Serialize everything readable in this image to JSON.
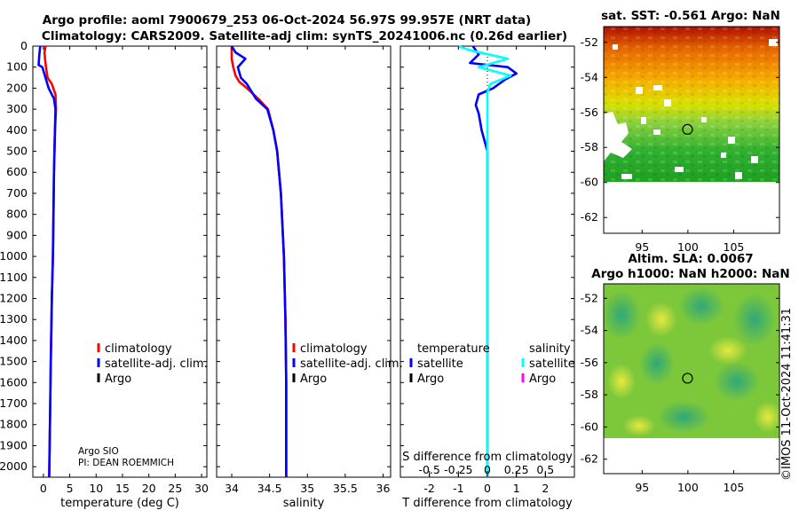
{
  "title": {
    "line1": "Argo profile: aoml 7900679_253 06-Oct-2024 56.97S 99.957E (NRT data)",
    "line2": "Climatology: CARS2009. Satellite-adj clim: synTS_20241006.nc (0.26d earlier)"
  },
  "colors": {
    "climatology": "#ff0000",
    "satellite": "#0000ff",
    "argo": "#000000",
    "sat_t": "#00ffff",
    "argo_s": "#ff00ff"
  },
  "pressure_ticks": [
    "0",
    "100",
    "200",
    "300",
    "400",
    "500",
    "600",
    "700",
    "800",
    "900",
    "1000",
    "1100",
    "1200",
    "1300",
    "1400",
    "1500",
    "1600",
    "1700",
    "1800",
    "1900",
    "2000"
  ],
  "legend_profiles": {
    "climatology": "climatology",
    "satellite": "satellite-adj. clim.",
    "argo": "Argo"
  },
  "legend_diff": {
    "temperature": "temperature",
    "salinity": "salinity",
    "satellite": "satellite",
    "argo": "Argo"
  },
  "credit": {
    "line1": "Argo SIO",
    "line2": "PI: DEAN ROEMMICH"
  },
  "diff_note": "S difference from climatology",
  "maps": {
    "sst_title": "sat. SST: -0.561 Argo: NaN",
    "sla_title1": "Altim. SLA: 0.0067",
    "sla_title2": "Argo h1000: NaN h2000: NaN",
    "lat_ticks": [
      "-52",
      "-54",
      "-56",
      "-58",
      "-60",
      "-62"
    ],
    "lon_ticks": [
      "95",
      "100",
      "105"
    ],
    "float_position": {
      "lon": 99.957,
      "lat": -56.97
    }
  },
  "stamp": "©IMOS 11-Oct-2024 11:41:31",
  "chart_data": [
    {
      "type": "line",
      "id": "temperature",
      "xlabel": "temperature (deg C)",
      "ylabel": "",
      "xlim": [
        -2,
        31
      ],
      "ylim": [
        0,
        2050
      ],
      "x_ticks": [
        0,
        5,
        10,
        15,
        20,
        25,
        30
      ],
      "x_tick_labels": [
        "0",
        "5",
        "10",
        "15",
        "20",
        "25",
        "30"
      ],
      "series": [
        {
          "name": "climatology",
          "color": "#ff0000",
          "points": [
            [
              0.4,
              0
            ],
            [
              0.2,
              30
            ],
            [
              0.3,
              60
            ],
            [
              0.5,
              100
            ],
            [
              0.8,
              150
            ],
            [
              1.6,
              180
            ],
            [
              2.3,
              230
            ],
            [
              2.4,
              300
            ],
            [
              2.2,
              400
            ],
            [
              2.0,
              600
            ],
            [
              1.9,
              800
            ],
            [
              1.8,
              1000
            ],
            [
              1.6,
              1200
            ],
            [
              1.4,
              1500
            ],
            [
              1.3,
              1700
            ],
            [
              1.1,
              2050
            ]
          ]
        },
        {
          "name": "satellite-adj. clim.",
          "color": "#0000ff",
          "points": [
            [
              -0.6,
              0
            ],
            [
              -0.8,
              50
            ],
            [
              -0.9,
              90
            ],
            [
              -0.2,
              100
            ],
            [
              1.0,
              200
            ],
            [
              2.0,
              250
            ],
            [
              2.3,
              300
            ],
            [
              2.2,
              400
            ],
            [
              2.0,
              600
            ],
            [
              1.9,
              800
            ],
            [
              1.8,
              1000
            ],
            [
              1.6,
              1200
            ],
            [
              1.4,
              1500
            ],
            [
              1.3,
              1700
            ],
            [
              1.1,
              2050
            ]
          ]
        }
      ]
    },
    {
      "type": "line",
      "id": "salinity",
      "xlabel": "salinity",
      "ylabel": "",
      "xlim": [
        33.8,
        36.1
      ],
      "ylim": [
        0,
        2050
      ],
      "x_ticks": [
        34,
        34.5,
        35,
        35.5,
        36
      ],
      "x_tick_labels": [
        "34",
        "34.5",
        "35",
        "35.5",
        "36"
      ],
      "series": [
        {
          "name": "climatology",
          "color": "#ff0000",
          "points": [
            [
              34.0,
              0
            ],
            [
              34.0,
              60
            ],
            [
              34.02,
              100
            ],
            [
              34.05,
              140
            ],
            [
              34.1,
              170
            ],
            [
              34.2,
              200
            ],
            [
              34.35,
              250
            ],
            [
              34.48,
              300
            ],
            [
              34.55,
              400
            ],
            [
              34.6,
              500
            ],
            [
              34.65,
              700
            ],
            [
              34.69,
              1000
            ],
            [
              34.71,
              1300
            ],
            [
              34.72,
              1600
            ],
            [
              34.72,
              2050
            ]
          ]
        },
        {
          "name": "satellite-adj. clim.",
          "color": "#0000ff",
          "points": [
            [
              34.0,
              0
            ],
            [
              34.05,
              30
            ],
            [
              34.18,
              60
            ],
            [
              34.08,
              100
            ],
            [
              34.12,
              150
            ],
            [
              34.2,
              180
            ],
            [
              34.32,
              250
            ],
            [
              34.47,
              300
            ],
            [
              34.55,
              400
            ],
            [
              34.6,
              500
            ],
            [
              34.65,
              700
            ],
            [
              34.69,
              1000
            ],
            [
              34.71,
              1300
            ],
            [
              34.72,
              1600
            ],
            [
              34.72,
              2050
            ]
          ]
        }
      ]
    },
    {
      "type": "line",
      "id": "difference",
      "xlabel": "T difference from climatology",
      "ylabel": "",
      "xlim": [
        -3,
        3
      ],
      "ylim": [
        0,
        2050
      ],
      "x_ticks": [
        -2,
        -1,
        0,
        1,
        2
      ],
      "x_tick_labels": [
        "-2",
        "-1",
        "0",
        "1",
        "2"
      ],
      "s_ticks": [
        -0.5,
        -0.25,
        0,
        0.25,
        0.5
      ],
      "s_tick_labels": [
        "-0.5",
        "-0.25",
        "0",
        "0.25",
        "0.5"
      ],
      "s_scale": 4,
      "series": [
        {
          "name": "temperature satellite",
          "color": "#0000ff",
          "points": [
            [
              -0.5,
              0
            ],
            [
              -0.3,
              40
            ],
            [
              -0.6,
              80
            ],
            [
              0.7,
              100
            ],
            [
              1.0,
              130
            ],
            [
              0.6,
              160
            ],
            [
              0.2,
              200
            ],
            [
              -0.3,
              230
            ],
            [
              -0.4,
              280
            ],
            [
              -0.3,
              320
            ],
            [
              -0.2,
              400
            ],
            [
              0,
              500
            ],
            [
              0,
              2050
            ]
          ]
        },
        {
          "name": "salinity satellite",
          "color": "#00ffff",
          "points": [
            [
              -1.0,
              0
            ],
            [
              -0.6,
              20
            ],
            [
              0.7,
              60
            ],
            [
              -0.3,
              100
            ],
            [
              0.8,
              140
            ],
            [
              0.1,
              180
            ],
            [
              0,
              220
            ],
            [
              0,
              2050
            ]
          ]
        }
      ]
    }
  ]
}
